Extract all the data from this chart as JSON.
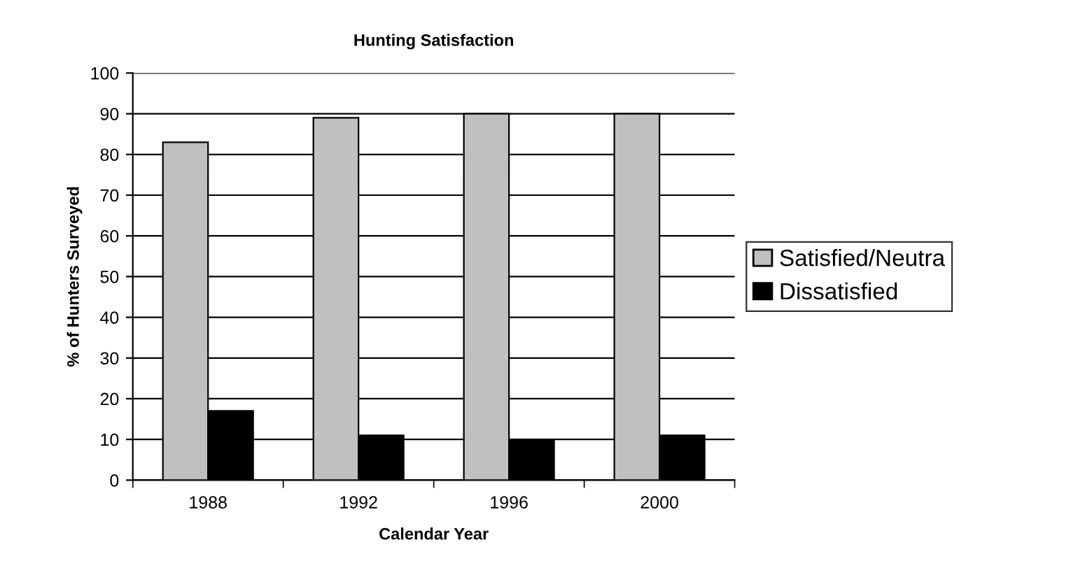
{
  "chart_data": {
    "type": "bar",
    "title": "Hunting Satisfaction",
    "xlabel": "Calendar Year",
    "ylabel": "% of Hunters Surveyed",
    "categories": [
      "1988",
      "1992",
      "1996",
      "2000"
    ],
    "series": [
      {
        "name": "Satisfied/Neutra",
        "color": "#c0c0c0",
        "values": [
          83,
          89,
          90,
          90
        ]
      },
      {
        "name": "Dissatisfied",
        "color": "#000000",
        "values": [
          17,
          11,
          10,
          11
        ]
      }
    ],
    "ylim": [
      0,
      100
    ],
    "yticks": [
      0,
      10,
      20,
      30,
      40,
      50,
      60,
      70,
      80,
      90,
      100
    ],
    "grid": "y",
    "legend": "right"
  }
}
